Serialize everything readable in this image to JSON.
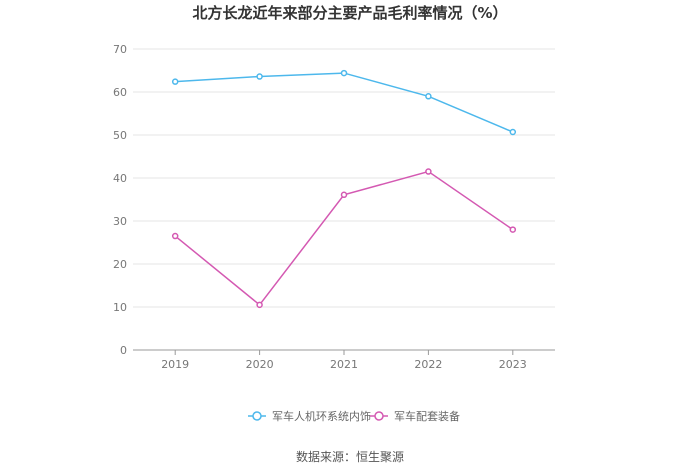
{
  "chart_data": {
    "type": "line",
    "title": "北方长龙近年来部分主要产品毛利率情况（%）",
    "categories": [
      "2019",
      "2020",
      "2021",
      "2022",
      "2023"
    ],
    "series": [
      {
        "name": "军车人机环系统内饰",
        "color": "#4db8ec",
        "values": [
          62.4,
          63.6,
          64.4,
          59.0,
          50.7
        ]
      },
      {
        "name": "军车配套装备",
        "color": "#d459b2",
        "values": [
          26.5,
          10.5,
          36.1,
          41.5,
          28.0
        ]
      }
    ],
    "ylim": [
      0,
      70
    ],
    "yticks": [
      0,
      10,
      20,
      30,
      40,
      50,
      60,
      70
    ],
    "grid": true,
    "legend_position": "bottom"
  },
  "source_text": "数据来源：恒生聚源"
}
